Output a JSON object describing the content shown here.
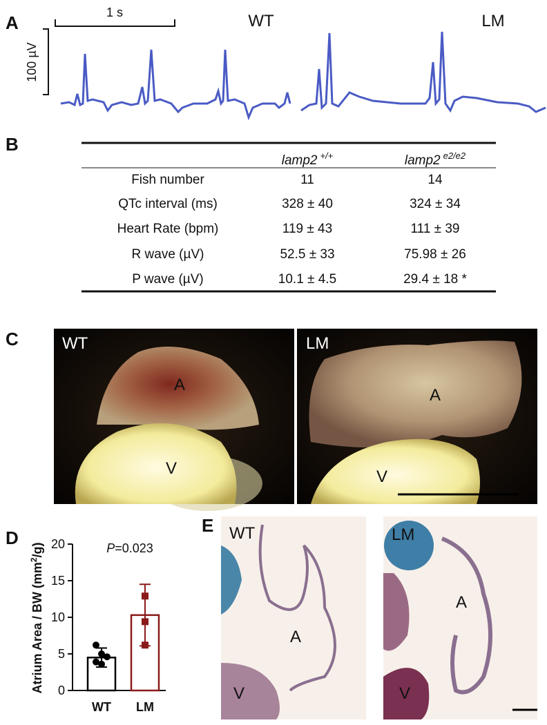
{
  "panel_a": {
    "label": "A",
    "time_scale": "1 s",
    "voltage_scale": "100 µV",
    "left_title": "WT",
    "right_title": "LM"
  },
  "panel_b": {
    "label": "B",
    "header": [
      {
        "name": "lamp2",
        "sup": "+/+"
      },
      {
        "name": "lamp2",
        "sup": "e2/e2"
      }
    ],
    "rows": [
      [
        "Fish number",
        "11",
        "14"
      ],
      [
        "QTc interval (ms)",
        "328 ± 40",
        "324 ± 34"
      ],
      [
        "Heart Rate (bpm)",
        "119 ± 43",
        "111 ± 39"
      ],
      [
        "R wave (µV)",
        "52.5 ± 33",
        "75.98 ± 26"
      ],
      [
        "P wave (µV)",
        "10.1 ± 4.5",
        "29.4 ± 18 *"
      ]
    ]
  },
  "panel_c": {
    "label": "C",
    "left": {
      "title": "WT",
      "atrium": "A",
      "ventricle": "V"
    },
    "right": {
      "title": "LM",
      "atrium": "A",
      "ventricle": "V"
    }
  },
  "panel_d": {
    "label": "D"
  },
  "chart_data": {
    "type": "bar",
    "y_label": [
      "Atrium Area / BW (mm",
      "2",
      "/g)"
    ],
    "annotation": [
      "P",
      "=0.023"
    ],
    "categories": [
      "WT",
      "LM"
    ],
    "values": [
      4.5,
      10.3
    ],
    "errors": [
      1.3,
      4.2
    ],
    "points": [
      [
        6.2,
        5.0,
        4.6,
        3.9,
        3.6
      ],
      [
        12.9,
        9.4,
        6.2
      ]
    ],
    "colors": [
      "#000000",
      "#8b1a1a"
    ],
    "ylim": [
      0,
      20
    ],
    "yticks": [
      0,
      5,
      10,
      15,
      20
    ]
  },
  "panel_e": {
    "label": "E",
    "left": {
      "title": "WT",
      "atrium": "A",
      "ventricle": "V"
    },
    "right": {
      "title": "LM",
      "atrium": "A",
      "ventricle": "V"
    }
  }
}
